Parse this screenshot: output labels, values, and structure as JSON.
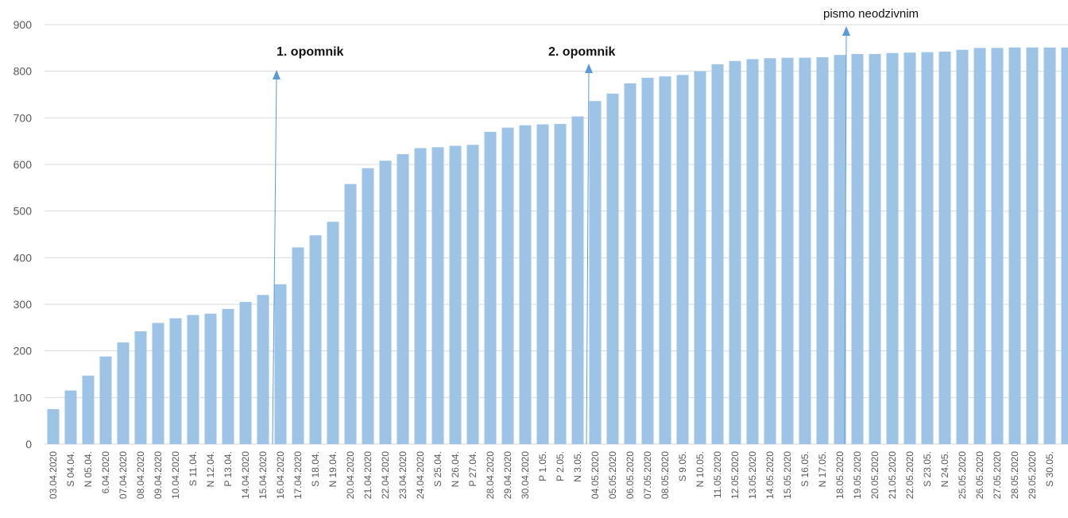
{
  "chart_data": {
    "type": "bar",
    "categories": [
      "03.04.2020",
      "S 04.04.",
      "N 05.04.",
      "6.04.2020",
      "07.04.2020",
      "08.04.2020",
      "09.04.2020",
      "10.04.2020",
      "S 11.04.",
      "N 12.04.",
      "P 13.04.",
      "14.04.2020",
      "15.04.2020",
      "16.04.2020",
      "17.04.2020",
      "S 18.04.",
      "N 19.04.",
      "20.04.2020",
      "21.04.2020",
      "22.04.2020",
      "23.04.2020",
      "24.04.2020",
      "S 25.04.",
      "N 26.04.",
      "P 27.04.",
      "28.04.2020",
      "29.04.2020",
      "30.04.2020",
      "P 1.05.",
      "P 2.05.",
      "N 3.05.",
      "04.05.2020",
      "05.05.2020",
      "06.05.2020",
      "07.05.2020",
      "08.05.2020",
      "S 9.05.",
      "N 10.05.",
      "11.05.2020",
      "12.05.2020",
      "13.05.2020",
      "14.05.2020",
      "15.05.2020",
      "S 16.05.",
      "N 17.05.",
      "18.05.2020",
      "19.05.2020",
      "20.05.2020",
      "21.05.2020",
      "22.05.2020",
      "S 23.05.",
      "N 24.05.",
      "25.05.2020",
      "26.05.2020",
      "27.05.2020",
      "28.05.2020",
      "29.05.2020",
      "S 30.05.",
      null
    ],
    "values": [
      75,
      115,
      147,
      188,
      218,
      242,
      260,
      270,
      277,
      280,
      290,
      305,
      320,
      343,
      422,
      448,
      477,
      558,
      592,
      608,
      622,
      635,
      637,
      640,
      642,
      670,
      679,
      684,
      686,
      687,
      703,
      736,
      752,
      774,
      786,
      789,
      792,
      800,
      815,
      822,
      826,
      828,
      829,
      829,
      830,
      835,
      837,
      837,
      839,
      840,
      841,
      842,
      846,
      850,
      850,
      851,
      851,
      851,
      851
    ],
    "color": "#9dc3e6",
    "ylim": [
      0,
      900
    ],
    "yticks": [
      0,
      100,
      200,
      300,
      400,
      500,
      600,
      700,
      800,
      900
    ],
    "grid": true,
    "annotations": [
      {
        "text": "1. opomnik",
        "bold": true
      },
      {
        "text": "2. opomnik",
        "bold": true
      },
      {
        "text": "pismo neodzivnim",
        "bold": false
      }
    ]
  }
}
